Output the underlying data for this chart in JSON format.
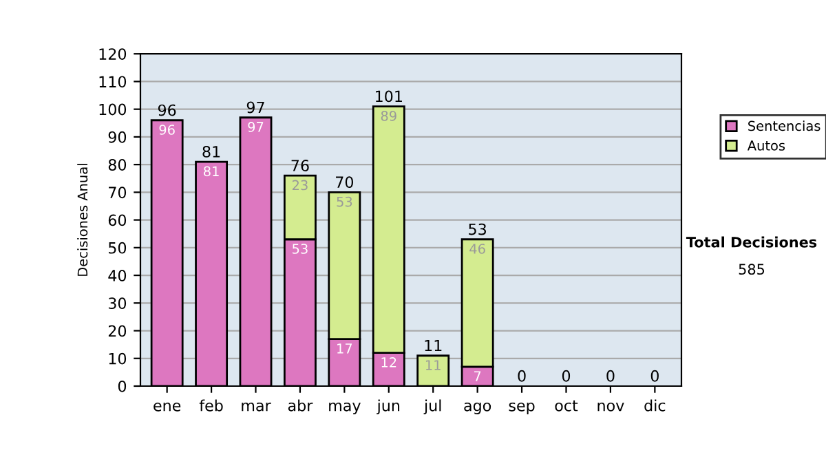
{
  "chart_data": {
    "type": "bar",
    "stacked": true,
    "ylabel": "Decisiones Anual",
    "categories": [
      "ene",
      "feb",
      "mar",
      "abr",
      "may",
      "jun",
      "jul",
      "ago",
      "sep",
      "oct",
      "nov",
      "dic"
    ],
    "series": [
      {
        "name": "Sentencias",
        "color": "#dd77c0",
        "values": [
          96,
          81,
          97,
          53,
          17,
          12,
          0,
          7,
          0,
          0,
          0,
          0
        ],
        "value_labels": [
          "96",
          "81",
          "97",
          "53",
          "17",
          "12",
          null,
          "7",
          null,
          null,
          null,
          null
        ]
      },
      {
        "name": "Autos",
        "color": "#d4ec90",
        "values": [
          0,
          0,
          0,
          23,
          53,
          89,
          11,
          46,
          0,
          0,
          0,
          0
        ],
        "value_labels": [
          null,
          null,
          null,
          "23",
          "53",
          "89",
          "11",
          "46",
          null,
          null,
          null,
          null
        ]
      }
    ],
    "totals": [
      "96",
      "81",
      "97",
      "76",
      "70",
      "101",
      "11",
      "53",
      "0",
      "0",
      "0",
      "0"
    ],
    "ylim": [
      0,
      120
    ],
    "yticks": [
      0,
      10,
      20,
      30,
      40,
      50,
      60,
      70,
      80,
      90,
      100,
      110,
      120
    ],
    "grid": "y",
    "legend": "right",
    "annotations": [
      "Total Decisiones",
      "585"
    ]
  }
}
